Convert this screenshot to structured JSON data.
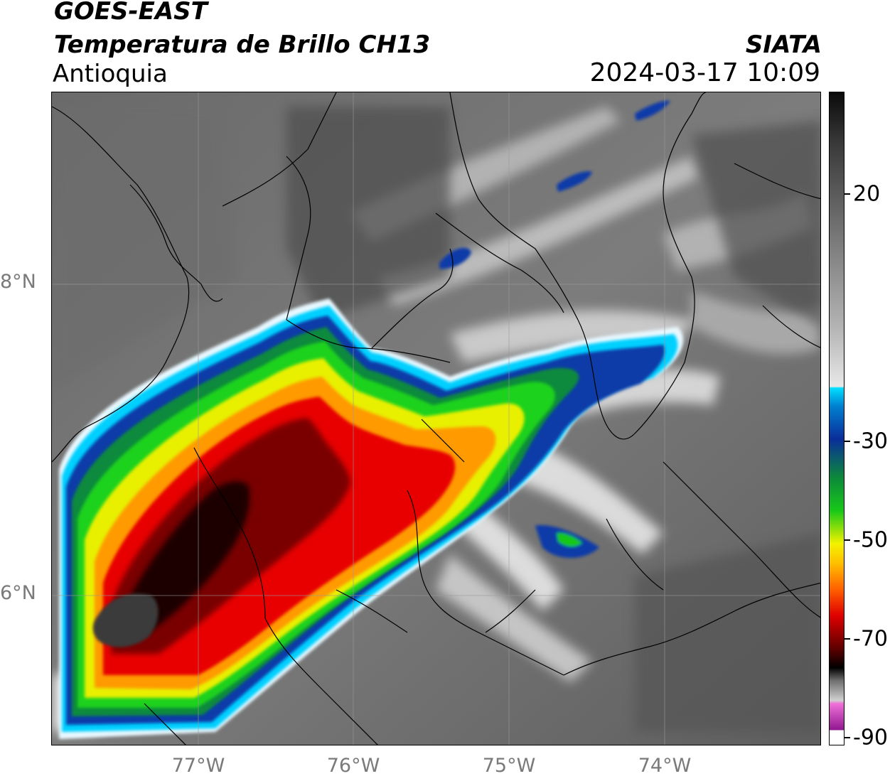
{
  "header": {
    "satellite": "GOES-EAST",
    "product": "Temperatura de Brillo CH13",
    "region": "Antioquia",
    "organization": "SIATA",
    "datetime": "2024-03-17 10:09"
  },
  "axes": {
    "latitude_labels": [
      "8°N",
      "6°N"
    ],
    "longitude_labels": [
      "77°W",
      "76°W",
      "75°W",
      "74°W"
    ]
  },
  "colorbar": {
    "tick_labels": [
      "20",
      "-30",
      "-50",
      "-70",
      "-90"
    ],
    "colors": {
      "warm_dark": "#505050",
      "warm_light": "#f4f4f4",
      "cyan": "#00d8ff",
      "blue": "#0a2d9a",
      "green": "#18c818",
      "yellow": "#f2f200",
      "orange": "#ff8c00",
      "red": "#e00000",
      "dark_red": "#500000",
      "black": "#000000",
      "pink": "#e070d0",
      "purple": "#901890"
    }
  },
  "map": {
    "grid": true,
    "grid_color": "#9a9a9a"
  }
}
